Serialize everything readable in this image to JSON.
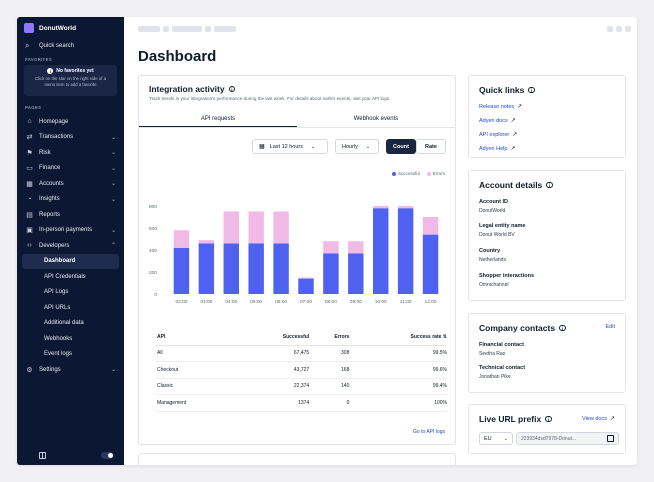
{
  "sidebar": {
    "brand": "DonutWorld",
    "quick_search": "Quick search",
    "favorites_label": "FAVORITES",
    "favorites_empty_title": "No favorites yet",
    "favorites_empty_desc": "Click on the star on the right side of a menu item to add a favorite",
    "pages_label": "PAGES",
    "items": [
      {
        "label": "Homepage",
        "icon": "home-icon"
      },
      {
        "label": "Transactions",
        "icon": "transactions-icon"
      },
      {
        "label": "Risk",
        "icon": "risk-icon"
      },
      {
        "label": "Finance",
        "icon": "finance-icon"
      },
      {
        "label": "Accounts",
        "icon": "accounts-icon"
      },
      {
        "label": "Insights",
        "icon": "insights-icon"
      },
      {
        "label": "Reports",
        "icon": "reports-icon"
      },
      {
        "label": "In-person payments",
        "icon": "terminal-icon"
      },
      {
        "label": "Developers",
        "icon": "code-icon"
      }
    ],
    "developer_subitems": [
      "Dashboard",
      "API Credentials",
      "API Logs",
      "API URLs",
      "Additional data",
      "Webhooks",
      "Event logs"
    ],
    "settings": "Settings"
  },
  "main": {
    "title": "Dashboard"
  },
  "integration": {
    "title": "Integration activity",
    "description": "Track trends in your integration's performance during the last week. For details about earlier events, visit your API logs.",
    "tabs": [
      "API requests",
      "Webhook events"
    ],
    "period": "Last 12 hours",
    "granularity": "Hourly",
    "mode_on": "Count",
    "mode_off": "Rate",
    "legend": [
      "Successful",
      "Errors"
    ],
    "table": {
      "headers": [
        "API",
        "Successful",
        "Errors",
        "Success rate"
      ],
      "rows": [
        {
          "api": "All",
          "successful": "67,475",
          "errors": "308",
          "rate": "99.5%"
        },
        {
          "api": "Checkout",
          "successful": "43,727",
          "errors": "168",
          "rate": "99.6%"
        },
        {
          "api": "Classic",
          "successful": "22,374",
          "errors": "140",
          "rate": "99.4%"
        },
        {
          "api": "Management",
          "successful": "1374",
          "errors": "0",
          "rate": "100%"
        }
      ]
    },
    "goto_link": "Go to API logs"
  },
  "chart_data": {
    "type": "bar",
    "stacked": true,
    "categories": [
      "02:00",
      "03:00",
      "04:00",
      "05:00",
      "06:00",
      "07:00",
      "08:00",
      "09:00",
      "10:00",
      "11:00",
      "12:00"
    ],
    "series": [
      {
        "name": "Successful",
        "values": [
          420,
          460,
          460,
          460,
          460,
          140,
          370,
          370,
          780,
          780,
          540
        ]
      },
      {
        "name": "Errors",
        "values": [
          160,
          30,
          290,
          290,
          290,
          10,
          110,
          110,
          20,
          20,
          160
        ]
      }
    ],
    "ylim": [
      0,
      800
    ],
    "yticks": [
      0,
      200,
      400,
      600,
      800
    ],
    "colors": {
      "Successful": "#4e62ef",
      "Errors": "#f1b9e6"
    }
  },
  "quick_links": {
    "title": "Quick links",
    "links": [
      "Release notes",
      "Adyen docs",
      "API explorer",
      "Adyen Help"
    ]
  },
  "account": {
    "title": "Account details",
    "fields": [
      {
        "label": "Account ID",
        "value": "DonutWorld"
      },
      {
        "label": "Legal entity name",
        "value": "Donut World BV"
      },
      {
        "label": "Country",
        "value": "Netherlands"
      },
      {
        "label": "Shopper interactions",
        "value": "Omnichannel"
      }
    ]
  },
  "contacts": {
    "title": "Company contacts",
    "edit": "Edit",
    "fields": [
      {
        "label": "Financial contact",
        "value": "Seetha Rao"
      },
      {
        "label": "Technical contact",
        "value": "Jonathan Pike"
      }
    ]
  },
  "live_url": {
    "title": "Live URL prefix",
    "view_docs": "View docs",
    "region": "EU",
    "prefix": "223934dsd7978-Donut..."
  }
}
